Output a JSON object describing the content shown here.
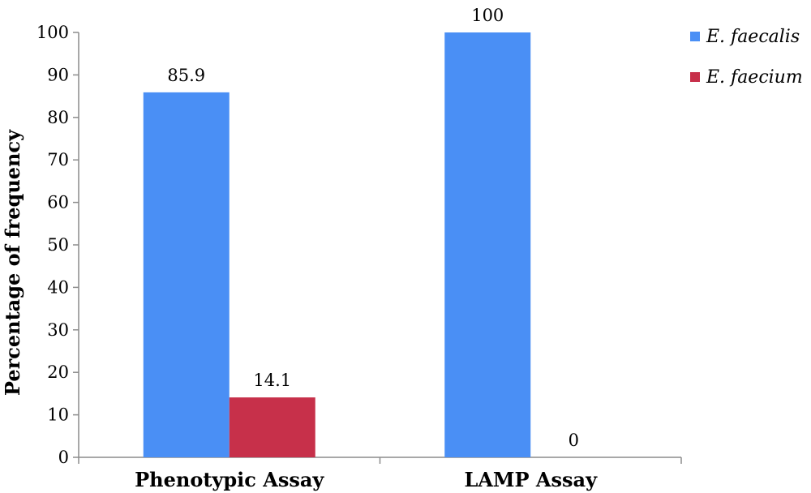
{
  "chart_data": {
    "type": "bar",
    "title": "",
    "xlabel": "",
    "ylabel": "Percentage of frequency",
    "ylim": [
      0,
      100
    ],
    "yticks": [
      0,
      10,
      20,
      30,
      40,
      50,
      60,
      70,
      80,
      90,
      100
    ],
    "categories": [
      "Phenotypic Assay",
      "LAMP Assay"
    ],
    "series": [
      {
        "name": "E. faecalis",
        "color": "#4a8ff5",
        "values": [
          85.9,
          100
        ]
      },
      {
        "name": "E. faecium",
        "color": "#c7304a",
        "values": [
          14.1,
          0
        ]
      }
    ],
    "data_labels": [
      [
        "85.9",
        "100"
      ],
      [
        "14.1",
        "0"
      ]
    ],
    "grid": false,
    "legend": "top-right"
  }
}
